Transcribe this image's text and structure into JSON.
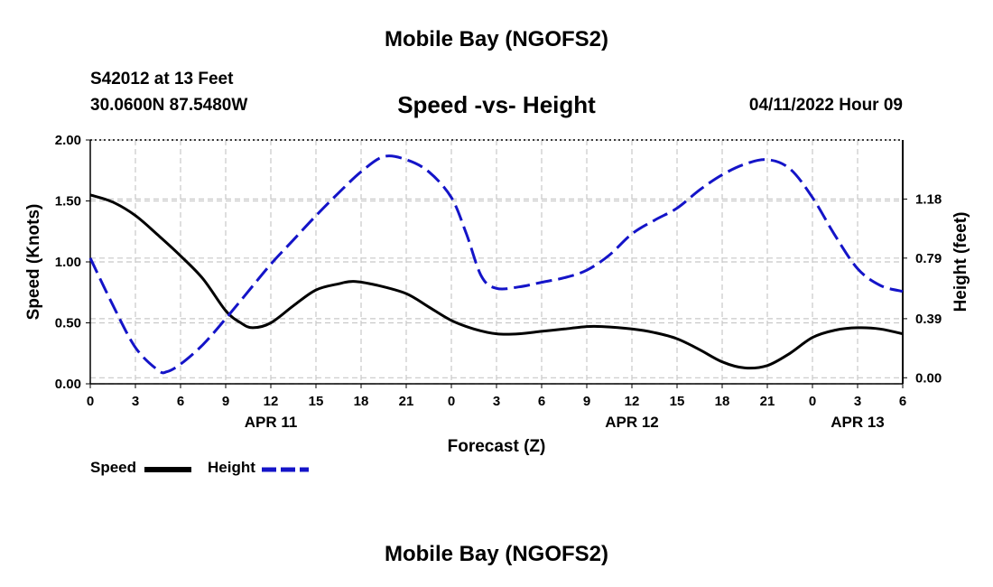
{
  "page": {
    "top_title": "Mobile Bay (NGOFS2)",
    "bottom_title": "Mobile Bay (NGOFS2)",
    "station": "S42012 at 13 Feet",
    "coordinates": "30.0600N  87.5480W",
    "subtitle": "Speed -vs- Height",
    "datetime": "04/11/2022 Hour 09"
  },
  "chart_data": {
    "type": "line",
    "title": "Speed -vs- Height",
    "xlabel": "Forecast (Z)",
    "ylabel": "Speed (Knots)",
    "y2label": "Height (feet)",
    "ylim": [
      0,
      2.0
    ],
    "y2lim": [
      -0.04,
      1.57
    ],
    "yticks": [
      0.0,
      0.5,
      1.0,
      1.5,
      2.0
    ],
    "ytick_labels": [
      "0.00",
      "0.50",
      "1.00",
      "1.50",
      "2.00"
    ],
    "y2ticks": [
      0.0,
      0.39,
      0.79,
      1.18
    ],
    "y2tick_labels": [
      "0.00",
      "0.39",
      "0.79",
      "1.18"
    ],
    "x_hours": [
      0,
      3,
      6,
      9,
      12,
      15,
      18,
      21,
      24,
      27,
      30,
      33,
      36,
      39,
      42,
      45,
      48,
      51,
      54
    ],
    "x_tick_labels": [
      "0",
      "3",
      "6",
      "9",
      "12",
      "15",
      "18",
      "21",
      "0",
      "3",
      "6",
      "9",
      "12",
      "15",
      "18",
      "21",
      "0",
      "3",
      "6"
    ],
    "date_labels": [
      {
        "hour": 12,
        "label": "APR 11"
      },
      {
        "hour": 36,
        "label": "APR 12"
      },
      {
        "hour": 51,
        "label": "APR 13"
      }
    ],
    "grid": true,
    "series": [
      {
        "name": "Speed",
        "axis": "left",
        "color": "#000000",
        "style": "solid",
        "x": [
          0,
          1.5,
          3,
          4.5,
          6,
          7.5,
          9,
          10,
          10.8,
          12,
          13.5,
          15,
          16.5,
          17.5,
          19,
          21,
          22.5,
          24,
          25.5,
          27,
          28.5,
          30,
          31.5,
          33,
          34,
          36,
          37.5,
          39,
          40.5,
          42,
          43.5,
          45,
          46.5,
          48,
          49.5,
          51,
          52.5,
          54
        ],
        "values": [
          1.55,
          1.49,
          1.38,
          1.22,
          1.05,
          0.86,
          0.6,
          0.5,
          0.46,
          0.5,
          0.64,
          0.77,
          0.82,
          0.84,
          0.81,
          0.74,
          0.63,
          0.52,
          0.45,
          0.41,
          0.41,
          0.43,
          0.45,
          0.47,
          0.47,
          0.45,
          0.42,
          0.37,
          0.28,
          0.18,
          0.13,
          0.15,
          0.25,
          0.38,
          0.44,
          0.46,
          0.45,
          0.41
        ]
      },
      {
        "name": "Height",
        "axis": "right",
        "color": "#1414c8",
        "style": "dashed",
        "x": [
          0,
          1.5,
          3,
          4.5,
          5.1,
          6,
          7.5,
          9,
          10.5,
          12,
          13.5,
          15,
          16.5,
          18,
          19.5,
          21,
          22.5,
          24,
          25,
          26,
          27,
          28.5,
          30,
          31.5,
          33,
          34.5,
          36,
          37.5,
          39,
          40.5,
          42,
          43.5,
          45,
          46.5,
          48,
          49.5,
          51,
          52.5,
          54
        ],
        "values": [
          0.79,
          0.48,
          0.2,
          0.05,
          0.04,
          0.09,
          0.22,
          0.39,
          0.57,
          0.75,
          0.91,
          1.07,
          1.22,
          1.36,
          1.46,
          1.44,
          1.36,
          1.19,
          0.95,
          0.67,
          0.59,
          0.6,
          0.63,
          0.66,
          0.71,
          0.81,
          0.95,
          1.04,
          1.12,
          1.24,
          1.34,
          1.41,
          1.44,
          1.38,
          1.19,
          0.94,
          0.72,
          0.61,
          0.57
        ]
      }
    ],
    "legend": [
      {
        "label": "Speed",
        "color": "#000000",
        "style": "solid"
      },
      {
        "label": "Height",
        "color": "#1414c8",
        "style": "dashed"
      }
    ]
  }
}
